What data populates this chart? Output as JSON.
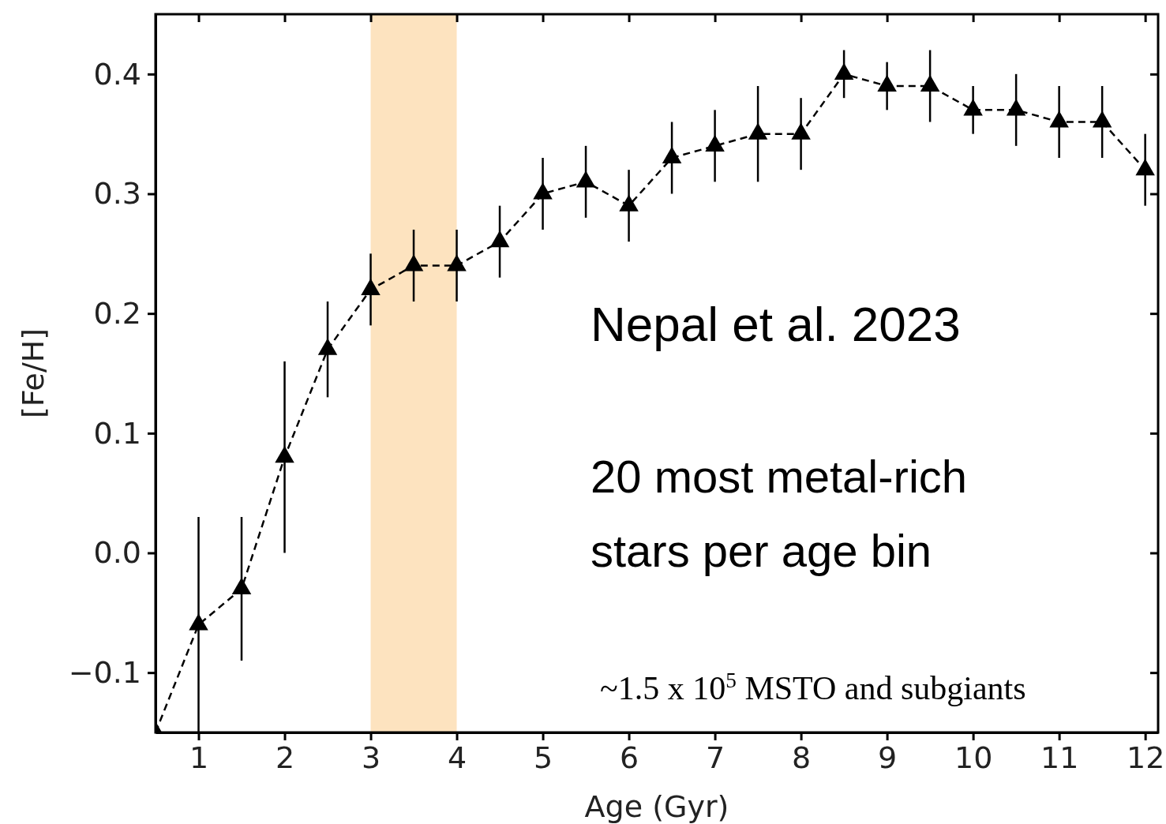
{
  "chart_data": {
    "type": "line",
    "xlabel": "Age (Gyr)",
    "ylabel": "[Fe/H]",
    "x": [
      0.5,
      1,
      1.5,
      2,
      2.5,
      3,
      3.5,
      4,
      4.5,
      5,
      5.5,
      6,
      6.5,
      7,
      7.5,
      8,
      8.5,
      9,
      9.5,
      10,
      10.5,
      11,
      11.5,
      12
    ],
    "series": [
      {
        "color": "#000000",
        "values": [
          -0.15,
          -0.06,
          -0.03,
          0.08,
          0.17,
          0.22,
          0.24,
          0.24,
          0.26,
          0.3,
          0.31,
          0.29,
          0.33,
          0.34,
          0.35,
          0.35,
          0.4,
          0.39,
          0.39,
          0.37,
          0.37,
          0.36,
          0.36,
          0.32
        ],
        "errors": [
          null,
          0.09,
          0.06,
          0.08,
          0.04,
          0.03,
          0.03,
          0.03,
          0.03,
          0.03,
          0.03,
          0.03,
          0.03,
          0.03,
          0.04,
          0.03,
          0.02,
          0.02,
          0.03,
          0.02,
          0.03,
          0.03,
          0.03,
          0.03
        ]
      }
    ],
    "marker": "triangle",
    "line_style": "dashed",
    "xlim": [
      0.5,
      12.15
    ],
    "xticks": [
      1,
      2,
      3,
      4,
      5,
      6,
      7,
      8,
      9,
      10,
      11,
      12
    ],
    "ylim": [
      -0.15,
      0.45
    ],
    "yticks": [
      {
        "value": -0.1,
        "label": "−0.1"
      },
      {
        "value": 0,
        "label": "0.0"
      },
      {
        "value": 0.1,
        "label": "0.1"
      },
      {
        "value": 0.2,
        "label": "0.2"
      },
      {
        "value": 0.3,
        "label": "0.3"
      },
      {
        "value": 0.4,
        "label": "0.4"
      }
    ],
    "bands": [
      {
        "axis": "x",
        "from": 3,
        "to": 4,
        "color": "#fde3bf"
      }
    ],
    "annotations": [
      "Nepal et al. 2023",
      "20 most metal-rich\nstars per age bin",
      "~1.5 x 10$^{5}$ MSTO and subgiants"
    ]
  }
}
